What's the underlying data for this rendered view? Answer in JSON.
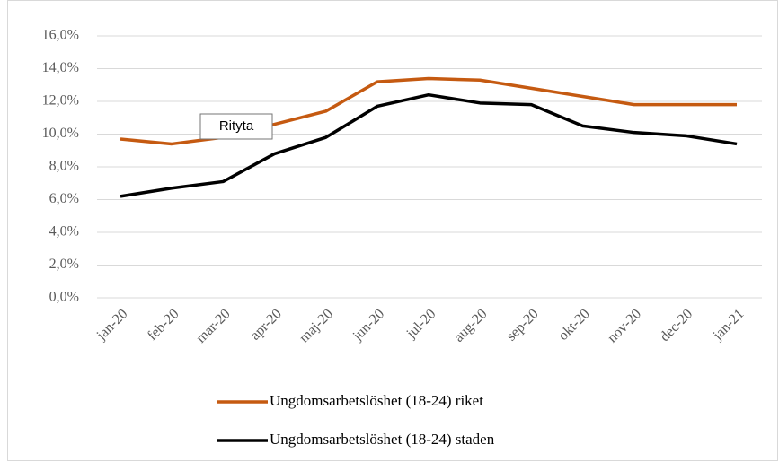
{
  "chart_data": {
    "type": "line",
    "categories": [
      "jan-20",
      "feb-20",
      "mar-20",
      "apr-20",
      "maj-20",
      "jun-20",
      "jul-20",
      "aug-20",
      "sep-20",
      "okt-20",
      "nov-20",
      "dec-20",
      "jan-21"
    ],
    "series": [
      {
        "name": "Ungdomsarbetslöshet (18-24) riket",
        "color": "#c55a11",
        "values": [
          9.7,
          9.4,
          9.8,
          10.6,
          11.4,
          13.2,
          13.4,
          13.3,
          12.8,
          12.3,
          11.8,
          11.8,
          11.8
        ]
      },
      {
        "name": "Ungdomsarbetslöshet (18-24) staden",
        "color": "#000000",
        "values": [
          6.2,
          6.7,
          7.1,
          8.8,
          9.8,
          11.7,
          12.4,
          11.9,
          11.8,
          10.5,
          10.1,
          9.9,
          9.4
        ]
      }
    ],
    "ylim": [
      0,
      16
    ],
    "yticks": [
      {
        "value": 0,
        "label": "0,0%"
      },
      {
        "value": 2,
        "label": "2,0%"
      },
      {
        "value": 4,
        "label": "4,0%"
      },
      {
        "value": 6,
        "label": "6,0%"
      },
      {
        "value": 8,
        "label": "8,0%"
      },
      {
        "value": 10,
        "label": "10,0%"
      },
      {
        "value": 12,
        "label": "12,0%"
      },
      {
        "value": 14,
        "label": "14,0%"
      },
      {
        "value": 16,
        "label": "16,0%"
      }
    ],
    "grid": true,
    "legend": "bottom",
    "tooltip": "Rityta"
  }
}
